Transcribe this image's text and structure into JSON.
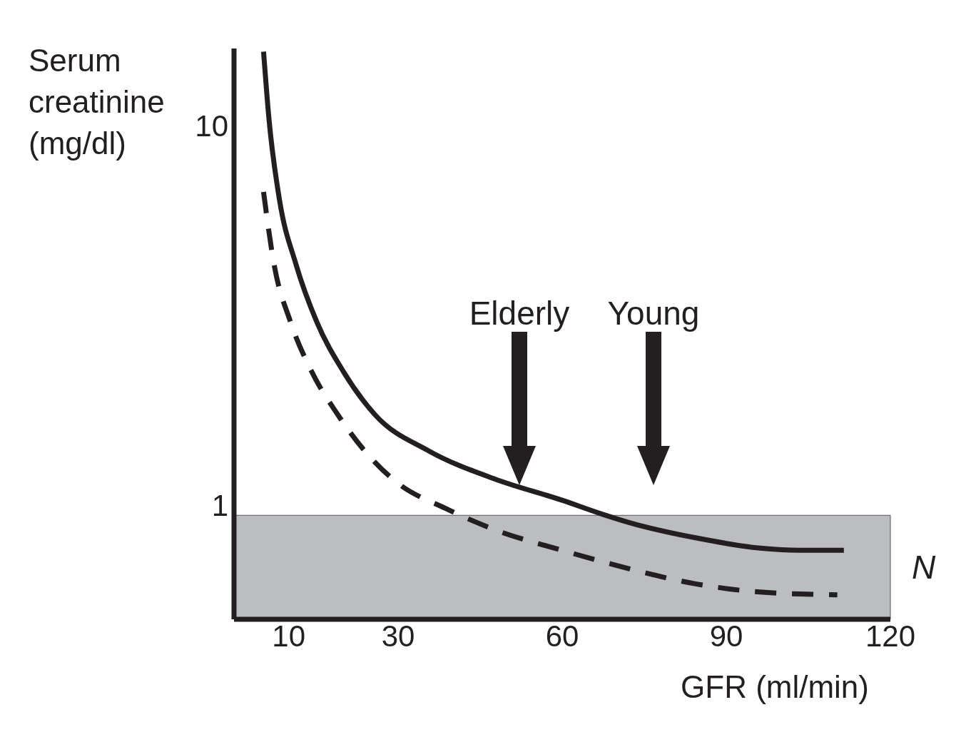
{
  "chart_data": {
    "type": "line",
    "xlabel": "GFR (ml/min)",
    "ylabel": "Serum creatinine (mg/dl)",
    "xlim": [
      0,
      120
    ],
    "xticks": [
      10,
      30,
      60,
      90,
      120
    ],
    "ylim": [
      0.5,
      16
    ],
    "yticks": [
      1,
      10
    ],
    "log": "y",
    "grid": false,
    "marker": "none",
    "series": [
      {
        "color": "#231f20",
        "line_style": "solid",
        "x": [
          5.4,
          6.4,
          8.3,
          11.3,
          15.1,
          20,
          25.8,
          35.6,
          47.8,
          60,
          67,
          72.2,
          84.4,
          96.2,
          103.3,
          111.5
        ],
        "values": [
          15.7,
          10.4,
          6.4,
          4.33,
          3.05,
          2.25,
          1.73,
          1.39,
          1.17,
          1.03,
          0.95,
          0.9,
          0.82,
          0.77,
          0.76,
          0.76
        ]
      },
      {
        "color": "#231f20",
        "line_style": "dashed",
        "x": [
          5.4,
          7.3,
          10.3,
          14.2,
          19,
          23.9,
          29.7,
          38.7,
          47.8,
          60,
          72.2,
          84.4,
          96.2,
          110.3
        ],
        "values": [
          6.7,
          4.33,
          3.05,
          2.25,
          1.73,
          1.39,
          1.15,
          0.98,
          0.86,
          0.76,
          0.68,
          0.62,
          0.59,
          0.58
        ]
      }
    ],
    "bands": [
      {
        "axis": "y",
        "from": 0.5,
        "to": 0.94,
        "label": "N",
        "color": "#bcbdc0"
      }
    ],
    "annotations": [
      "Elderly",
      "Young"
    ]
  }
}
